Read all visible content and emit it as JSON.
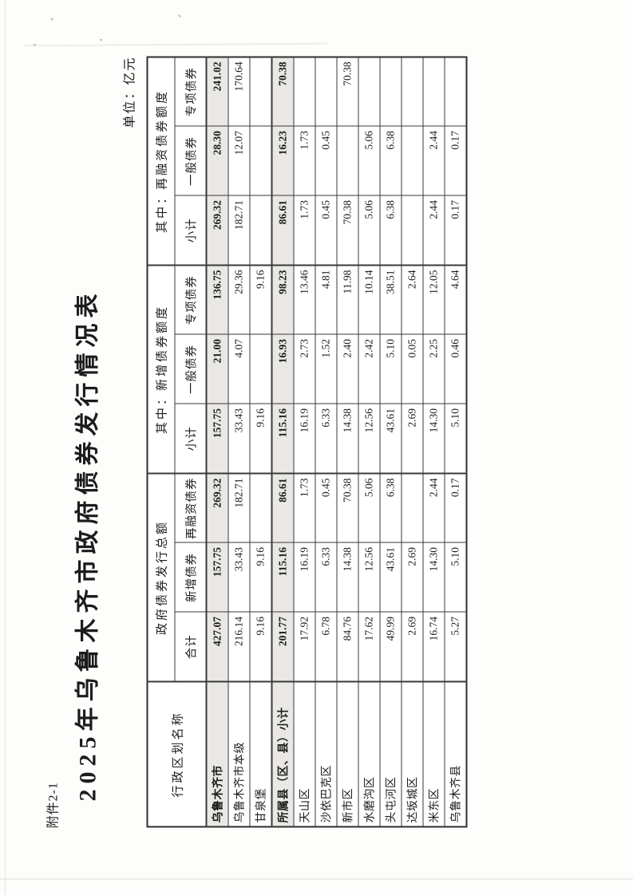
{
  "document": {
    "attachment_label": "附件2-1",
    "title": "2025年乌鲁木齐市政府债券发行情况表",
    "unit_label": "单位：亿元"
  },
  "colors": {
    "ink": "#1c1c1c",
    "table_border": "#3a3a3a",
    "bold_row_shading": "#e9e8e4",
    "paper": "#fdfdfb"
  },
  "table": {
    "name_header": "行政区划名称",
    "groups": [
      {
        "label": "政府债券发行总额",
        "subheaders": [
          "合计",
          "新增债券",
          "再融资债券"
        ]
      },
      {
        "label": "其中：新增债券额度",
        "subheaders": [
          "小计",
          "一般债券",
          "专项债券"
        ]
      },
      {
        "label": "其中：再融资债券额度",
        "subheaders": [
          "小计",
          "一般债券",
          "专项债券"
        ]
      }
    ],
    "rows": [
      {
        "name": "乌鲁木齐市",
        "bold": true,
        "values": [
          "427.07",
          "157.75",
          "269.32",
          "157.75",
          "21.00",
          "136.75",
          "269.32",
          "28.30",
          "241.02"
        ]
      },
      {
        "name": "乌鲁木齐市本级",
        "bold": false,
        "values": [
          "216.14",
          "33.43",
          "182.71",
          "33.43",
          "4.07",
          "29.36",
          "182.71",
          "12.07",
          "170.64"
        ]
      },
      {
        "name": "甘泉堡",
        "bold": false,
        "values": [
          "9.16",
          "9.16",
          "",
          "9.16",
          "",
          "9.16",
          "",
          "",
          ""
        ]
      },
      {
        "name": "所属县（区、县）小计",
        "bold": true,
        "values": [
          "201.77",
          "115.16",
          "86.61",
          "115.16",
          "16.93",
          "98.23",
          "86.61",
          "16.23",
          "70.38"
        ]
      },
      {
        "name": "天山区",
        "bold": false,
        "values": [
          "17.92",
          "16.19",
          "1.73",
          "16.19",
          "2.73",
          "13.46",
          "1.73",
          "1.73",
          ""
        ]
      },
      {
        "name": "沙依巴克区",
        "bold": false,
        "values": [
          "6.78",
          "6.33",
          "0.45",
          "6.33",
          "1.52",
          "4.81",
          "0.45",
          "0.45",
          ""
        ]
      },
      {
        "name": "新市区",
        "bold": false,
        "values": [
          "84.76",
          "14.38",
          "70.38",
          "14.38",
          "2.40",
          "11.98",
          "70.38",
          "",
          "70.38"
        ]
      },
      {
        "name": "水磨沟区",
        "bold": false,
        "values": [
          "17.62",
          "12.56",
          "5.06",
          "12.56",
          "2.42",
          "10.14",
          "5.06",
          "5.06",
          ""
        ]
      },
      {
        "name": "头屯河区",
        "bold": false,
        "values": [
          "49.99",
          "43.61",
          "6.38",
          "43.61",
          "5.10",
          "38.51",
          "6.38",
          "6.38",
          ""
        ]
      },
      {
        "name": "达坂城区",
        "bold": false,
        "values": [
          "2.69",
          "2.69",
          "",
          "2.69",
          "0.05",
          "2.64",
          "",
          "",
          ""
        ]
      },
      {
        "name": "米东区",
        "bold": false,
        "values": [
          "16.74",
          "14.30",
          "2.44",
          "14.30",
          "2.25",
          "12.05",
          "2.44",
          "2.44",
          ""
        ]
      },
      {
        "name": "乌鲁木齐县",
        "bold": false,
        "values": [
          "5.27",
          "5.10",
          "0.17",
          "5.10",
          "0.46",
          "4.64",
          "0.17",
          "0.17",
          ""
        ]
      }
    ]
  }
}
